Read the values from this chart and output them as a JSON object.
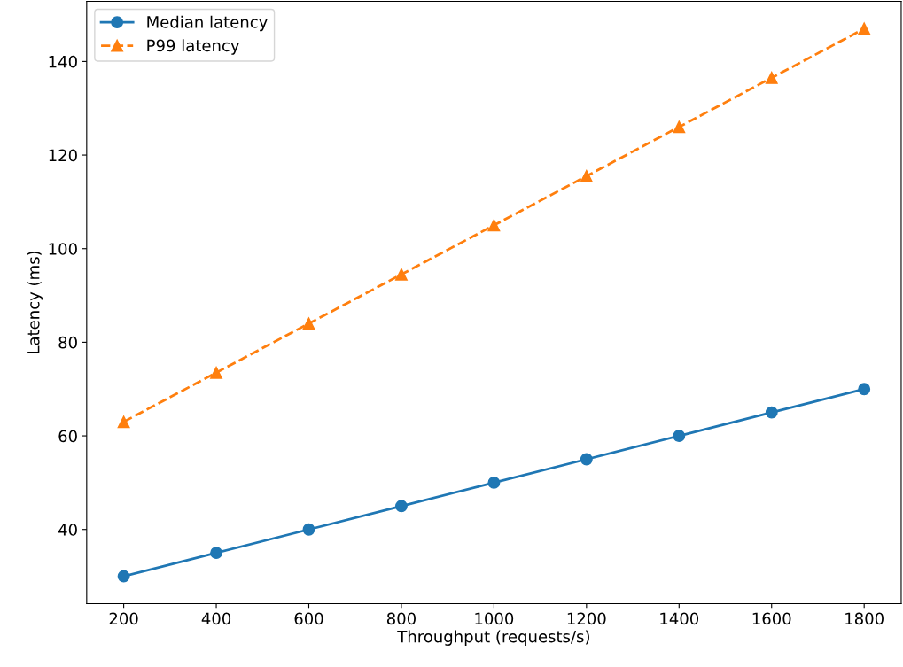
{
  "chart_data": {
    "type": "line",
    "xlabel": "Throughput (requests/s)",
    "ylabel": "Latency (ms)",
    "x": [
      200,
      400,
      600,
      800,
      1000,
      1200,
      1400,
      1600,
      1800
    ],
    "series": [
      {
        "name": "Median latency",
        "color": "#1f77b4",
        "marker": "circle",
        "line_style": "solid",
        "values": [
          30,
          35,
          40,
          45,
          50,
          55,
          60,
          65,
          70
        ]
      },
      {
        "name": "P99 latency",
        "color": "#ff7f0e",
        "marker": "triangle",
        "line_style": "dashed",
        "values": [
          63,
          73.5,
          84,
          94.5,
          105,
          115.5,
          126,
          136.5,
          147
        ]
      }
    ],
    "xlim": [
      120,
      1880
    ],
    "xticks": [
      200,
      400,
      600,
      800,
      1000,
      1200,
      1400,
      1600,
      1800
    ],
    "ylim": [
      24.15,
      152.85
    ],
    "yticks": [
      40,
      60,
      80,
      100,
      120,
      140
    ],
    "grid": false,
    "legend": "top left"
  }
}
